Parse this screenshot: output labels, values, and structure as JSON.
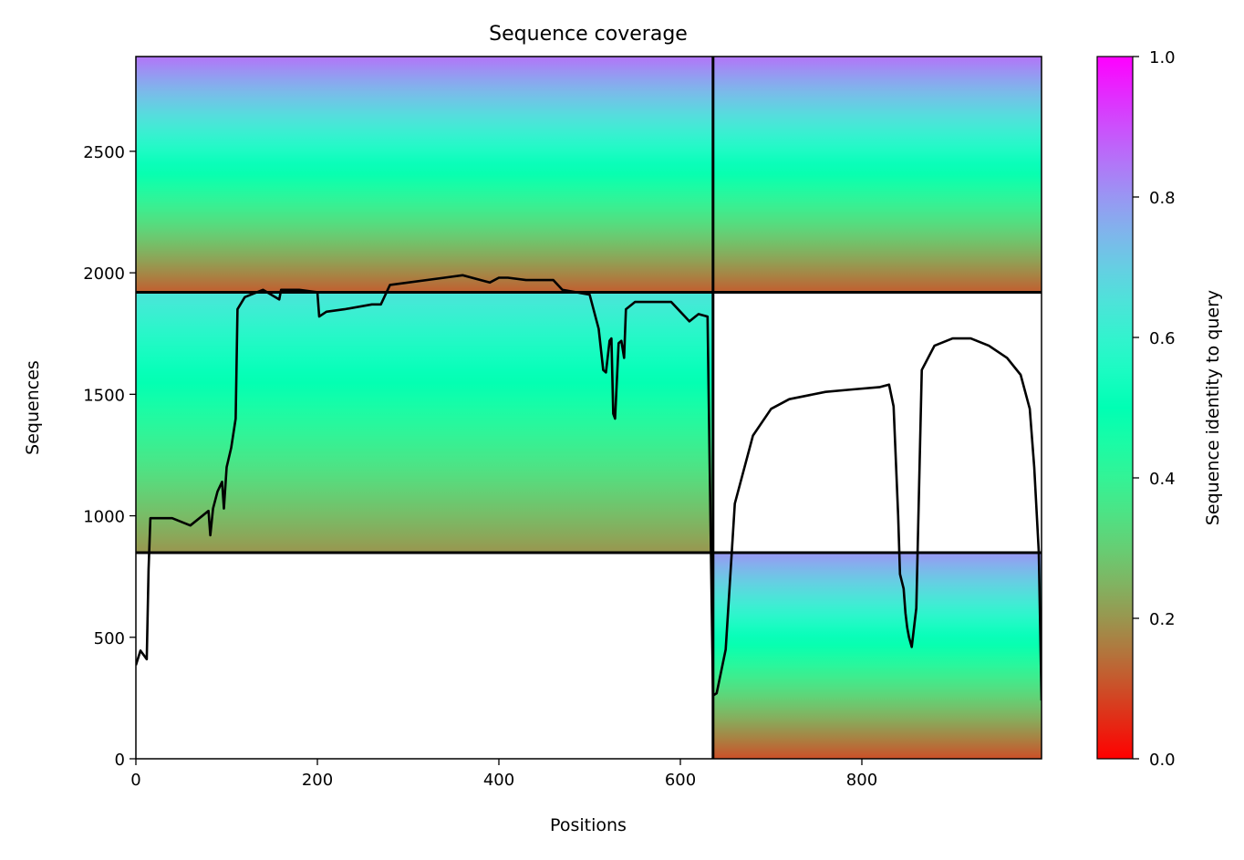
{
  "chart_data": {
    "type": "heatmap",
    "title": "Sequence coverage",
    "xlabel": "Positions",
    "ylabel": "Sequences",
    "xlim": [
      0,
      998
    ],
    "ylim": [
      0,
      2890
    ],
    "xticks": [
      0,
      200,
      400,
      600,
      800
    ],
    "yticks": [
      0,
      500,
      1000,
      1500,
      2000,
      2500
    ],
    "colorbar": {
      "label": "Sequence identity to query",
      "range": [
        0.0,
        1.0
      ],
      "ticks": [
        "0.0",
        "0.2",
        "0.4",
        "0.6",
        "0.8",
        "1.0"
      ],
      "colormap": "rainbow_r"
    },
    "chain_boundary_positions": [
      636
    ],
    "msa_blocks": [
      {
        "name": "paired",
        "x_range": [
          0,
          998
        ],
        "y_range": [
          1920,
          2890
        ],
        "identity_top": 0.85,
        "identity_bottom": 0.12
      },
      {
        "name": "chain-A-unpaired",
        "x_range": [
          0,
          636
        ],
        "y_range": [
          848,
          1920
        ],
        "identity_top": 0.65,
        "identity_bottom": 0.2
      },
      {
        "name": "chain-B-unpaired",
        "x_range": [
          636,
          998
        ],
        "y_range": [
          0,
          848
        ],
        "identity_top": 0.8,
        "identity_bottom": 0.1
      }
    ],
    "block_separators_y": [
      1920,
      848
    ],
    "coverage_line": {
      "x": [
        0,
        5,
        12,
        14,
        16,
        20,
        40,
        60,
        80,
        82,
        85,
        90,
        95,
        97,
        100,
        105,
        110,
        112,
        120,
        140,
        158,
        160,
        180,
        200,
        202,
        210,
        230,
        260,
        270,
        280,
        340,
        360,
        390,
        400,
        410,
        430,
        460,
        470,
        500,
        510,
        515,
        518,
        522,
        524,
        526,
        528,
        532,
        535,
        538,
        540,
        550,
        590,
        600,
        605,
        610,
        620,
        630,
        636,
        640,
        650,
        660,
        680,
        700,
        720,
        760,
        790,
        820,
        830,
        835,
        840,
        842,
        846,
        848,
        850,
        852,
        855,
        860,
        866,
        880,
        900,
        920,
        940,
        960,
        975,
        985,
        990,
        995,
        998
      ],
      "y": [
        385,
        445,
        410,
        780,
        990,
        990,
        990,
        960,
        1020,
        920,
        1030,
        1100,
        1140,
        1030,
        1200,
        1280,
        1400,
        1850,
        1900,
        1930,
        1890,
        1930,
        1930,
        1920,
        1820,
        1840,
        1850,
        1870,
        1870,
        1950,
        1980,
        1990,
        1960,
        1980,
        1980,
        1970,
        1970,
        1930,
        1910,
        1770,
        1600,
        1590,
        1720,
        1730,
        1420,
        1400,
        1710,
        1720,
        1650,
        1850,
        1880,
        1880,
        1840,
        1820,
        1800,
        1830,
        1820,
        260,
        270,
        450,
        1050,
        1330,
        1440,
        1480,
        1510,
        1520,
        1530,
        1540,
        1450,
        1000,
        760,
        700,
        600,
        540,
        500,
        460,
        620,
        1600,
        1700,
        1730,
        1730,
        1700,
        1650,
        1580,
        1440,
        1200,
        850,
        240
      ],
      "color": "#000000"
    }
  }
}
